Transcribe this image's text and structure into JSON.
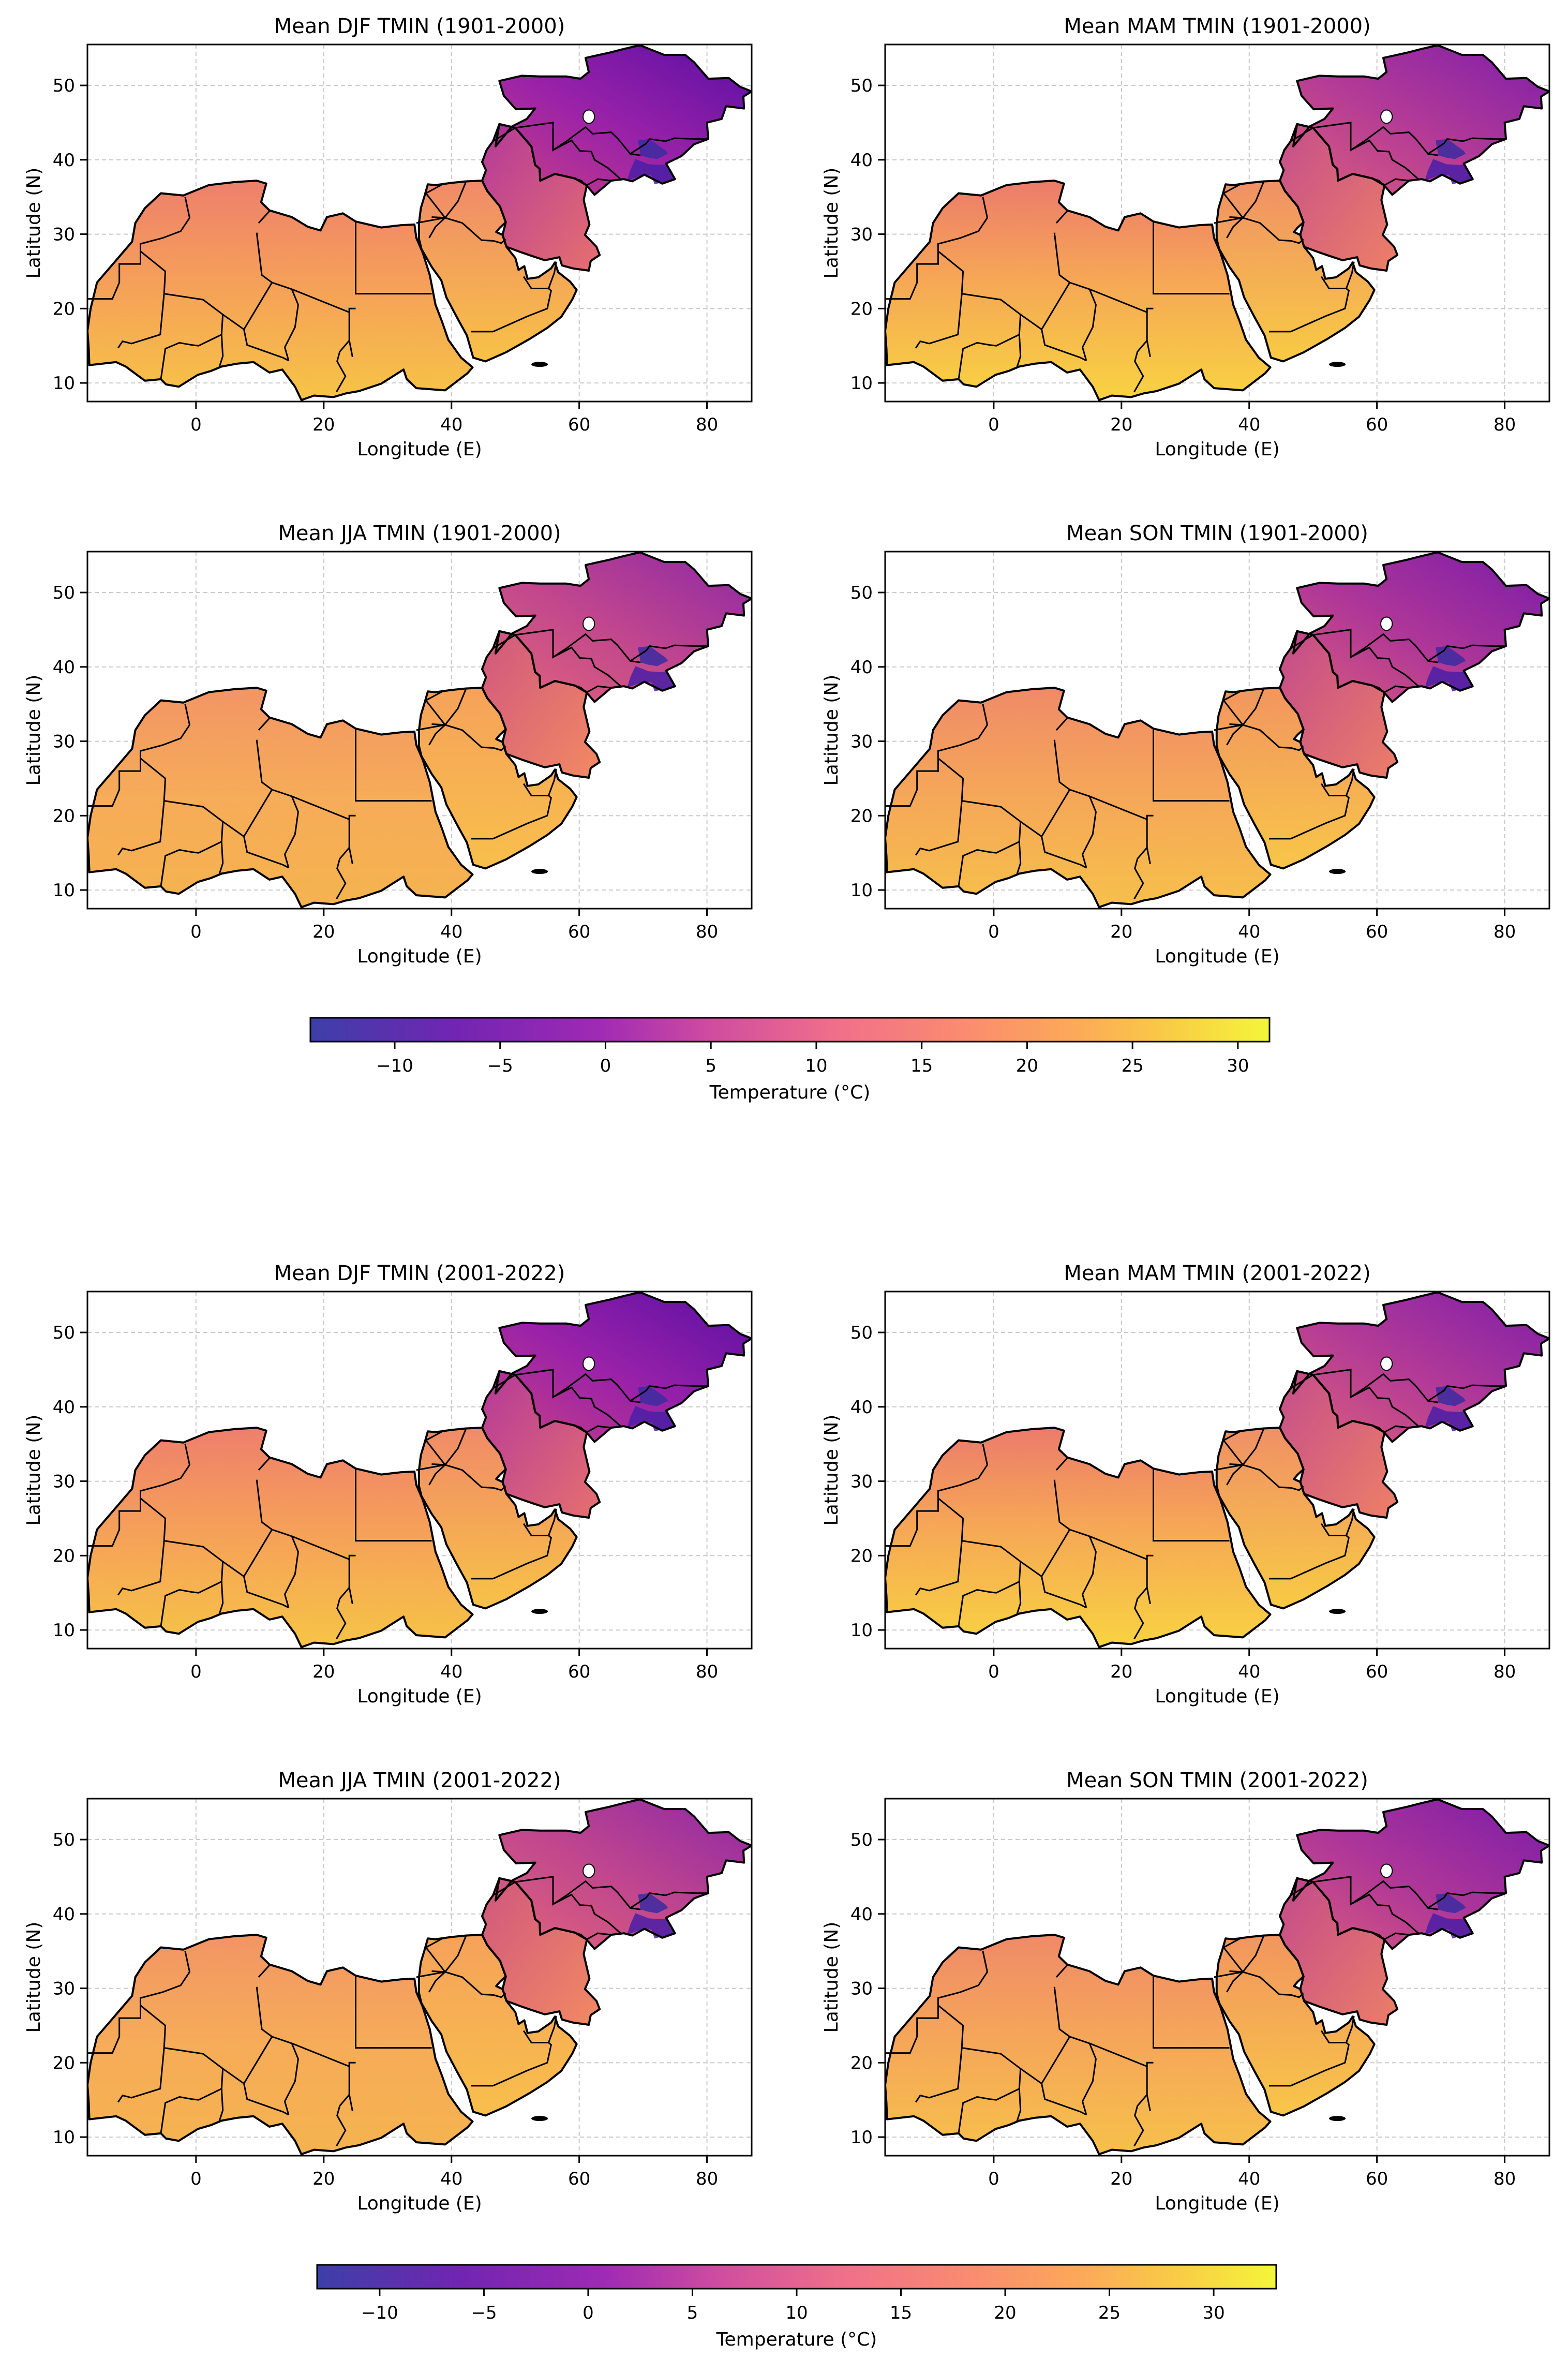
{
  "figure": {
    "x_label": "Longitude (E)",
    "y_label": "Latitude (N)",
    "x_ticks": [
      "0",
      "20",
      "40",
      "60",
      "80"
    ],
    "y_ticks": [
      "10",
      "20",
      "30",
      "40",
      "50"
    ],
    "colorbar_label": "Temperature (°C)",
    "colorbar_ticks": [
      "−10",
      "−5",
      "0",
      "5",
      "10",
      "15",
      "20",
      "25",
      "30"
    ],
    "colorbar_colormap": "plasma",
    "colors": {
      "land_outline": "#000000",
      "grid": "#c8c8c8",
      "water": "#ffffff",
      "cold_region": "#7a1ba6",
      "warm_region": "#f5a742"
    }
  },
  "panels": [
    {
      "title": "Mean DJF TMIN (1901-2000)",
      "style": "winter"
    },
    {
      "title": "Mean MAM TMIN (1901-2000)",
      "style": "spring"
    },
    {
      "title": "Mean JJA TMIN (1901-2000)",
      "style": "summer"
    },
    {
      "title": "Mean SON TMIN (1901-2000)",
      "style": "autumn"
    },
    {
      "title": "Mean DJF TMIN (2001-2022)",
      "style": "winter"
    },
    {
      "title": "Mean MAM TMIN (2001-2022)",
      "style": "spring"
    },
    {
      "title": "Mean JJA TMIN (2001-2022)",
      "style": "summer"
    },
    {
      "title": "Mean SON TMIN (2001-2022)",
      "style": "autumn"
    }
  ],
  "chart_data": [
    {
      "type": "heatmap",
      "title": "Mean DJF TMIN (1901-2000)",
      "xlabel": "Longitude (E)",
      "ylabel": "Latitude (N)",
      "xlim": [
        -17,
        87
      ],
      "ylim": [
        7.5,
        55.5
      ],
      "grid": true,
      "colorbar": {
        "label": "Temperature (°C)",
        "range": [
          -14,
          31.5
        ],
        "colormap": "plasma"
      }
    },
    {
      "type": "heatmap",
      "title": "Mean MAM TMIN (1901-2000)",
      "xlabel": "Longitude (E)",
      "ylabel": "Latitude (N)",
      "xlim": [
        -17,
        87
      ],
      "ylim": [
        7.5,
        55.5
      ],
      "grid": true,
      "colorbar": {
        "label": "Temperature (°C)",
        "range": [
          -14,
          31.5
        ],
        "colormap": "plasma"
      }
    },
    {
      "type": "heatmap",
      "title": "Mean JJA TMIN (1901-2000)",
      "xlabel": "Longitude (E)",
      "ylabel": "Latitude (N)",
      "xlim": [
        -17,
        87
      ],
      "ylim": [
        7.5,
        55.5
      ],
      "grid": true,
      "colorbar": {
        "label": "Temperature (°C)",
        "range": [
          -14,
          31.5
        ],
        "colormap": "plasma"
      }
    },
    {
      "type": "heatmap",
      "title": "Mean SON TMIN (1901-2000)",
      "xlabel": "Longitude (E)",
      "ylabel": "Latitude (N)",
      "xlim": [
        -17,
        87
      ],
      "ylim": [
        7.5,
        55.5
      ],
      "grid": true,
      "colorbar": {
        "label": "Temperature (°C)",
        "range": [
          -14,
          31.5
        ],
        "colormap": "plasma"
      }
    },
    {
      "type": "heatmap",
      "title": "Mean DJF TMIN (2001-2022)",
      "xlabel": "Longitude (E)",
      "ylabel": "Latitude (N)",
      "xlim": [
        -17,
        87
      ],
      "ylim": [
        7.5,
        55.5
      ],
      "grid": true,
      "colorbar": {
        "label": "Temperature (°C)",
        "range": [
          -13,
          33
        ],
        "colormap": "plasma"
      }
    },
    {
      "type": "heatmap",
      "title": "Mean MAM TMIN (2001-2022)",
      "xlabel": "Longitude (E)",
      "ylabel": "Latitude (N)",
      "xlim": [
        -17,
        87
      ],
      "ylim": [
        7.5,
        55.5
      ],
      "grid": true,
      "colorbar": {
        "label": "Temperature (°C)",
        "range": [
          -13,
          33
        ],
        "colormap": "plasma"
      }
    },
    {
      "type": "heatmap",
      "title": "Mean JJA TMIN (2001-2022)",
      "xlabel": "Longitude (E)",
      "ylabel": "Latitude (N)",
      "xlim": [
        -17,
        87
      ],
      "ylim": [
        7.5,
        55.5
      ],
      "grid": true,
      "colorbar": {
        "label": "Temperature (°C)",
        "range": [
          -13,
          33
        ],
        "colormap": "plasma"
      }
    },
    {
      "type": "heatmap",
      "title": "Mean SON TMIN (2001-2022)",
      "xlabel": "Longitude (E)",
      "ylabel": "Latitude (N)",
      "xlim": [
        -17,
        87
      ],
      "ylim": [
        7.5,
        55.5
      ],
      "grid": true,
      "colorbar": {
        "label": "Temperature (°C)",
        "range": [
          -13,
          33
        ],
        "colormap": "plasma"
      }
    }
  ]
}
